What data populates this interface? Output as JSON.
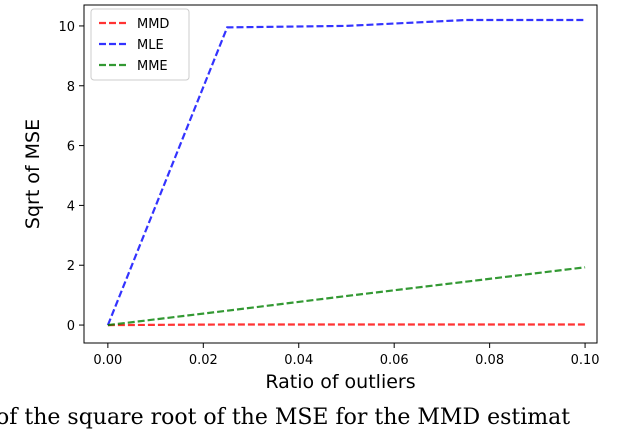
{
  "chart_data": {
    "type": "line",
    "xlabel": "Ratio of outliers",
    "ylabel": "Sqrt of MSE",
    "xlim": [
      -0.005,
      0.1025
    ],
    "ylim": [
      -0.6,
      10.7
    ],
    "xticks": [
      0.0,
      0.02,
      0.04,
      0.06,
      0.08,
      0.1
    ],
    "xtick_labels": [
      "0.00",
      "0.02",
      "0.04",
      "0.06",
      "0.08",
      "0.10"
    ],
    "yticks": [
      0,
      2,
      4,
      6,
      8,
      10
    ],
    "ytick_labels": [
      "0",
      "2",
      "4",
      "6",
      "8",
      "10"
    ],
    "grid": false,
    "legend_position": "top-left",
    "x": [
      0.0,
      0.025,
      0.05,
      0.075,
      0.1
    ],
    "series": [
      {
        "name": "MMD",
        "color": "#ff0000",
        "linestyle": "dashed",
        "values": [
          0.0,
          0.02,
          0.02,
          0.02,
          0.02
        ]
      },
      {
        "name": "MLE",
        "color": "#0000ff",
        "linestyle": "dashed",
        "values": [
          0.0,
          9.95,
          10.0,
          10.2,
          10.2
        ]
      },
      {
        "name": "MME",
        "color": "#008000",
        "linestyle": "dashed",
        "values": [
          0.0,
          0.48,
          0.97,
          1.45,
          1.93
        ]
      }
    ]
  },
  "caption": "of the square root of the MSE for the MMD estimat"
}
